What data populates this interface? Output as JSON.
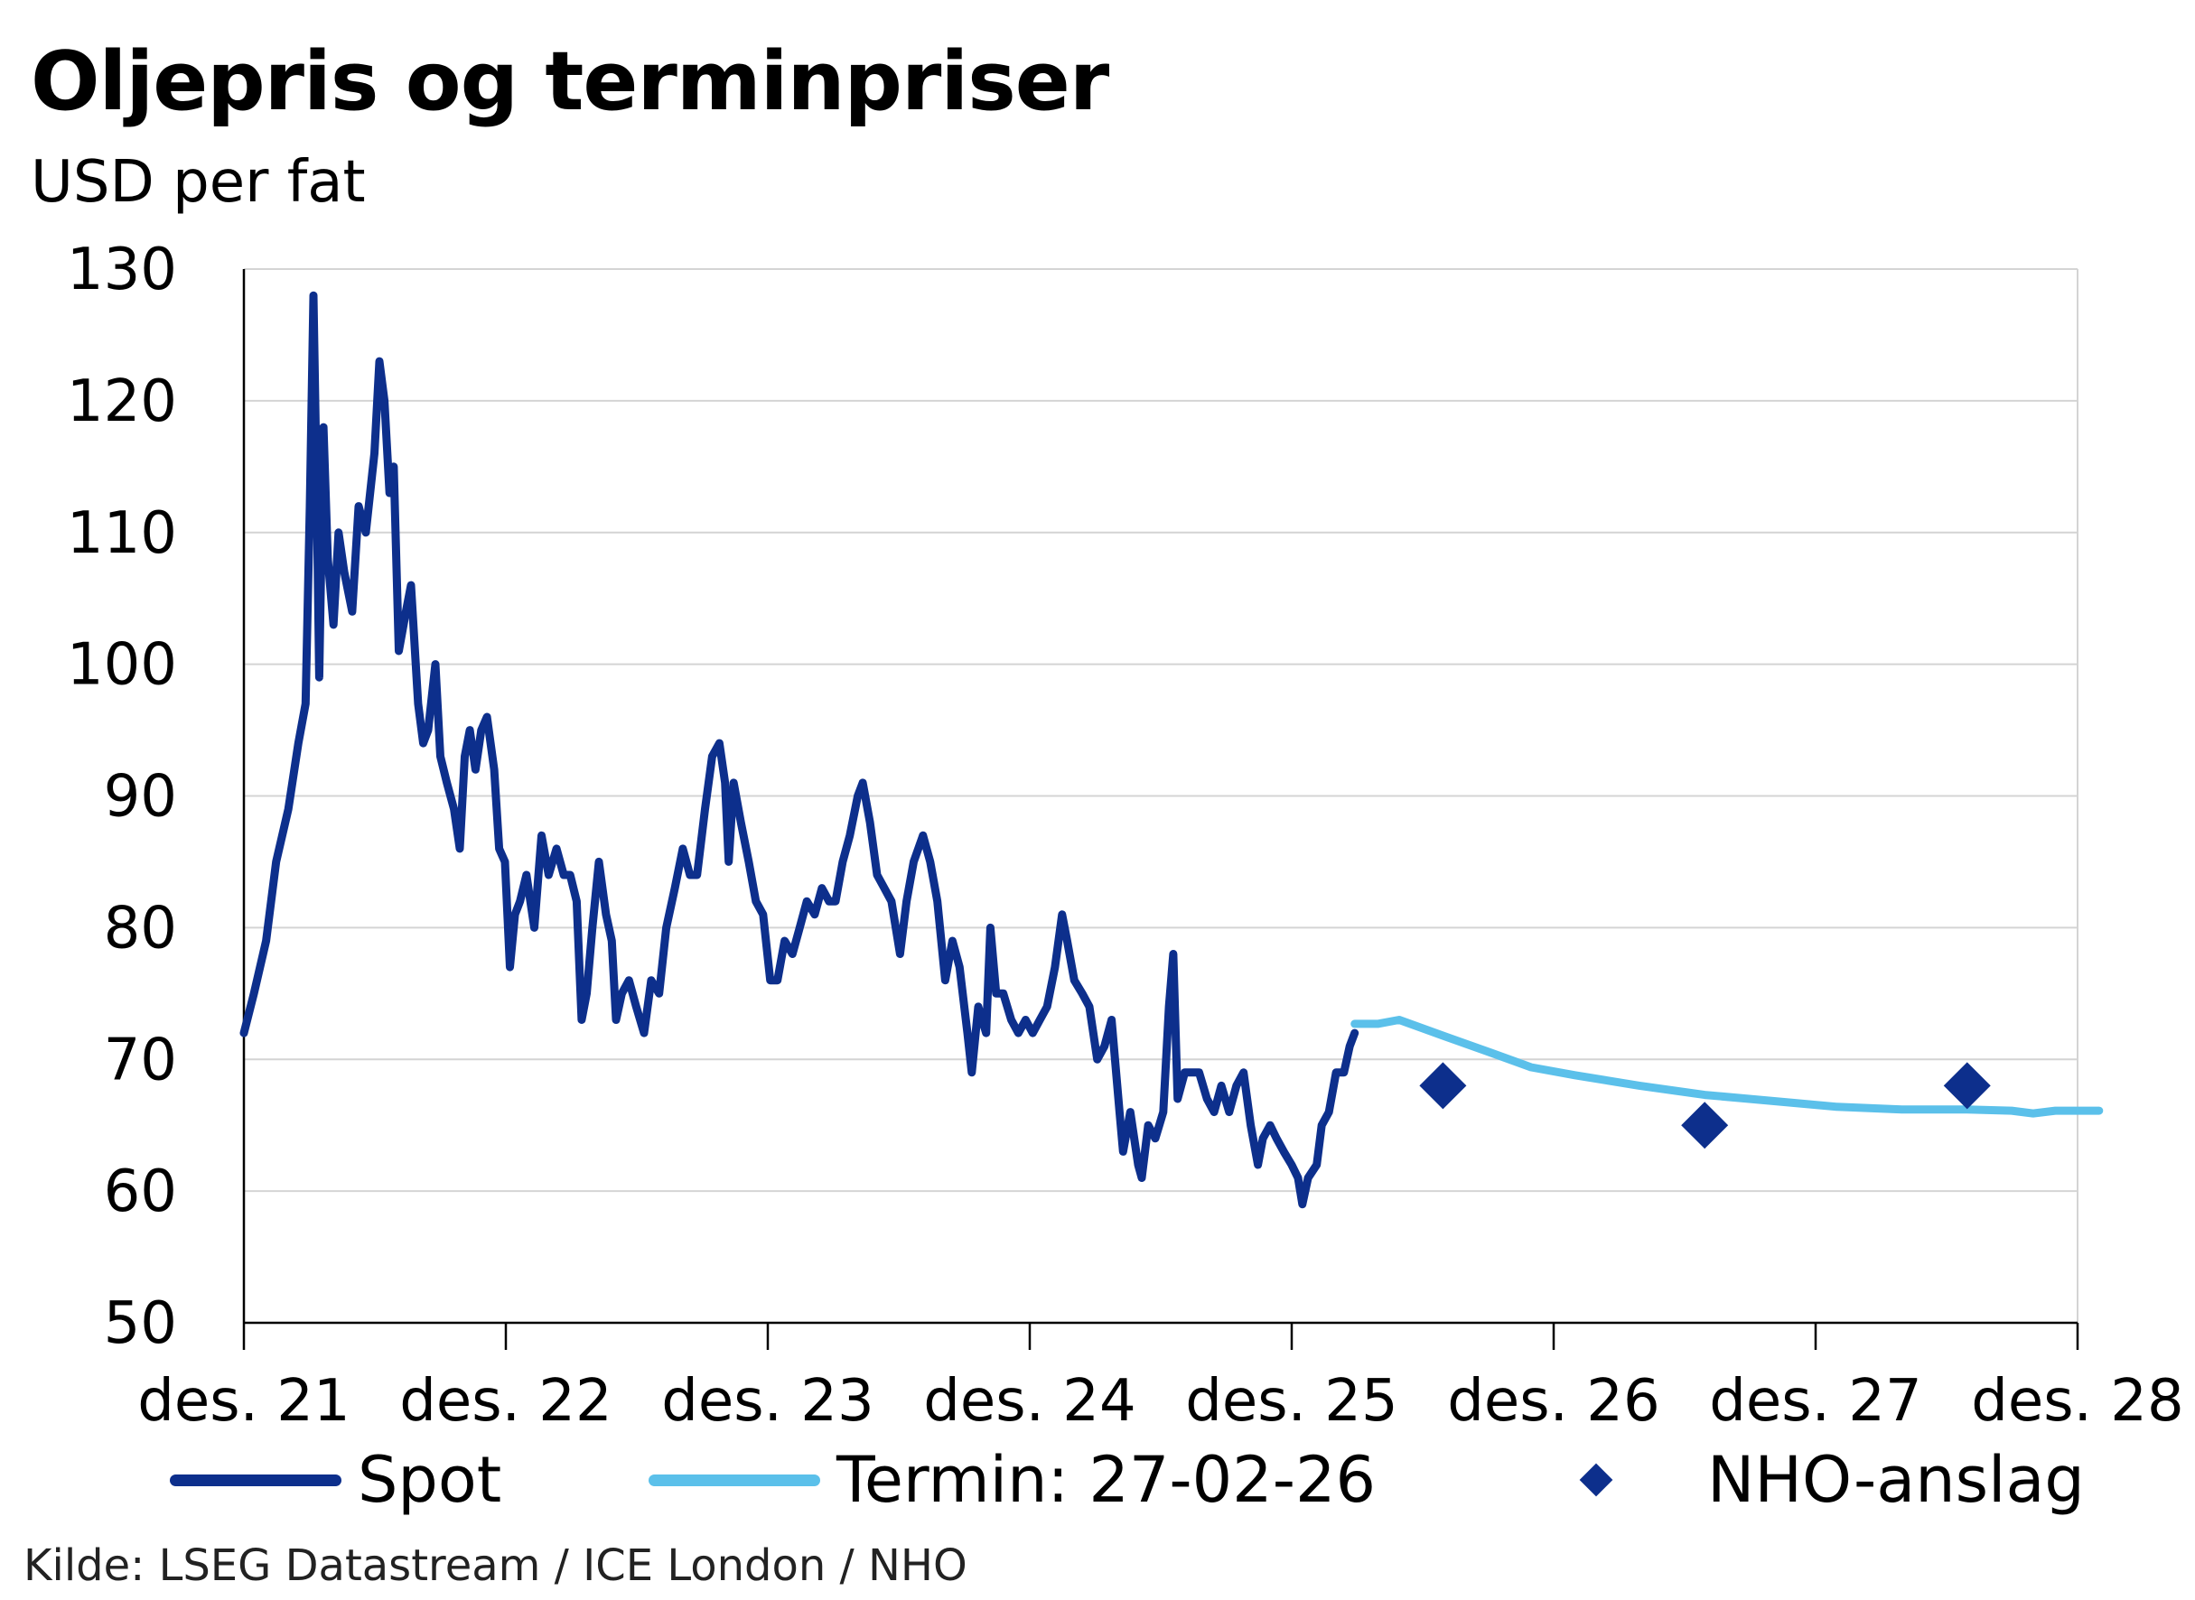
{
  "title": "Oljepris og terminpriser",
  "subtitle": "USD per fat",
  "source": "Kilde: LSEG Datastream / ICE London / NHO",
  "colors": {
    "spot": "#0d2f8c",
    "termin": "#5bc0ea",
    "nho": "#0d2f8c",
    "grid": "#d4d4d4",
    "axis": "#000000"
  },
  "chart_data": {
    "type": "line",
    "title": "Oljepris og terminpriser",
    "ylabel": "USD per fat",
    "xlabel": "",
    "ylim": [
      50,
      130
    ],
    "xlim": [
      "2021-12",
      "2028-12"
    ],
    "yticks": [
      50,
      60,
      70,
      80,
      90,
      100,
      110,
      120,
      130
    ],
    "xtick_labels": [
      "des. 21",
      "des. 22",
      "des. 23",
      "des. 24",
      "des. 25",
      "des. 26",
      "des. 27",
      "des. 28"
    ],
    "grid": true,
    "legend_position": "bottom",
    "series": [
      {
        "name": "Spot",
        "style": "line",
        "points": [
          [
            "2021-12-01",
            72
          ],
          [
            "2021-12-15",
            75
          ],
          [
            "2022-01-01",
            79
          ],
          [
            "2022-01-15",
            85
          ],
          [
            "2022-02-01",
            89
          ],
          [
            "2022-02-15",
            94
          ],
          [
            "2022-02-25",
            97
          ],
          [
            "2022-03-03",
            112
          ],
          [
            "2022-03-08",
            128
          ],
          [
            "2022-03-12",
            115
          ],
          [
            "2022-03-16",
            99
          ],
          [
            "2022-03-22",
            118
          ],
          [
            "2022-03-28",
            108
          ],
          [
            "2022-04-05",
            103
          ],
          [
            "2022-04-12",
            110
          ],
          [
            "2022-04-20",
            107
          ],
          [
            "2022-05-01",
            104
          ],
          [
            "2022-05-10",
            112
          ],
          [
            "2022-05-20",
            110
          ],
          [
            "2022-06-01",
            116
          ],
          [
            "2022-06-08",
            123
          ],
          [
            "2022-06-15",
            120
          ],
          [
            "2022-06-22",
            113
          ],
          [
            "2022-06-28",
            115
          ],
          [
            "2022-07-05",
            101
          ],
          [
            "2022-07-15",
            104
          ],
          [
            "2022-07-22",
            106
          ],
          [
            "2022-08-01",
            97
          ],
          [
            "2022-08-08",
            94
          ],
          [
            "2022-08-15",
            95
          ],
          [
            "2022-08-25",
            100
          ],
          [
            "2022-09-01",
            93
          ],
          [
            "2022-09-10",
            91
          ],
          [
            "2022-09-20",
            89
          ],
          [
            "2022-09-28",
            86
          ],
          [
            "2022-10-05",
            93
          ],
          [
            "2022-10-12",
            95
          ],
          [
            "2022-10-20",
            92
          ],
          [
            "2022-10-28",
            95
          ],
          [
            "2022-11-05",
            96
          ],
          [
            "2022-11-15",
            92
          ],
          [
            "2022-11-22",
            86
          ],
          [
            "2022-11-30",
            85
          ],
          [
            "2022-12-07",
            77
          ],
          [
            "2022-12-14",
            81
          ],
          [
            "2022-12-21",
            82
          ],
          [
            "2022-12-30",
            84
          ],
          [
            "2023-01-10",
            80
          ],
          [
            "2023-01-20",
            87
          ],
          [
            "2023-01-30",
            84
          ],
          [
            "2023-02-10",
            86
          ],
          [
            "2023-02-20",
            84
          ],
          [
            "2023-03-01",
            84
          ],
          [
            "2023-03-10",
            82
          ],
          [
            "2023-03-17",
            73
          ],
          [
            "2023-03-24",
            75
          ],
          [
            "2023-04-01",
            80
          ],
          [
            "2023-04-10",
            85
          ],
          [
            "2023-04-20",
            81
          ],
          [
            "2023-04-28",
            79
          ],
          [
            "2023-05-04",
            73
          ],
          [
            "2023-05-12",
            75
          ],
          [
            "2023-05-22",
            76
          ],
          [
            "2023-06-01",
            74
          ],
          [
            "2023-06-12",
            72
          ],
          [
            "2023-06-22",
            76
          ],
          [
            "2023-07-03",
            75
          ],
          [
            "2023-07-13",
            80
          ],
          [
            "2023-07-25",
            83
          ],
          [
            "2023-08-05",
            86
          ],
          [
            "2023-08-15",
            84
          ],
          [
            "2023-08-25",
            84
          ],
          [
            "2023-09-05",
            89
          ],
          [
            "2023-09-15",
            93
          ],
          [
            "2023-09-25",
            94
          ],
          [
            "2023-10-03",
            91
          ],
          [
            "2023-10-08",
            85
          ],
          [
            "2023-10-15",
            91
          ],
          [
            "2023-10-25",
            88
          ],
          [
            "2023-11-05",
            85
          ],
          [
            "2023-11-15",
            82
          ],
          [
            "2023-11-25",
            81
          ],
          [
            "2023-12-05",
            76
          ],
          [
            "2023-12-15",
            76
          ],
          [
            "2023-12-25",
            79
          ],
          [
            "2024-01-05",
            78
          ],
          [
            "2024-01-15",
            80
          ],
          [
            "2024-01-25",
            82
          ],
          [
            "2024-02-05",
            81
          ],
          [
            "2024-02-15",
            83
          ],
          [
            "2024-02-25",
            82
          ],
          [
            "2024-03-05",
            82
          ],
          [
            "2024-03-15",
            85
          ],
          [
            "2024-03-25",
            87
          ],
          [
            "2024-04-05",
            90
          ],
          [
            "2024-04-12",
            91
          ],
          [
            "2024-04-22",
            88
          ],
          [
            "2024-05-02",
            84
          ],
          [
            "2024-05-12",
            83
          ],
          [
            "2024-05-22",
            82
          ],
          [
            "2024-06-03",
            78
          ],
          [
            "2024-06-12",
            82
          ],
          [
            "2024-06-22",
            85
          ],
          [
            "2024-07-05",
            87
          ],
          [
            "2024-07-15",
            85
          ],
          [
            "2024-07-25",
            82
          ],
          [
            "2024-08-05",
            76
          ],
          [
            "2024-08-15",
            79
          ],
          [
            "2024-08-25",
            77
          ],
          [
            "2024-09-05",
            72
          ],
          [
            "2024-09-11",
            69
          ],
          [
            "2024-09-20",
            74
          ],
          [
            "2024-10-01",
            72
          ],
          [
            "2024-10-07",
            80
          ],
          [
            "2024-10-15",
            75
          ],
          [
            "2024-10-25",
            75
          ],
          [
            "2024-11-05",
            73
          ],
          [
            "2024-11-15",
            72
          ],
          [
            "2024-11-25",
            73
          ],
          [
            "2024-12-05",
            72
          ],
          [
            "2024-12-15",
            73
          ],
          [
            "2024-12-25",
            74
          ],
          [
            "2025-01-05",
            77
          ],
          [
            "2025-01-15",
            81
          ],
          [
            "2025-01-22",
            79
          ],
          [
            "2025-02-01",
            76
          ],
          [
            "2025-02-12",
            75
          ],
          [
            "2025-02-22",
            74
          ],
          [
            "2025-03-05",
            70
          ],
          [
            "2025-03-15",
            71
          ],
          [
            "2025-03-25",
            73
          ],
          [
            "2025-04-05",
            66
          ],
          [
            "2025-04-10",
            63
          ],
          [
            "2025-04-20",
            66
          ],
          [
            "2025-05-01",
            62
          ],
          [
            "2025-05-06",
            61
          ],
          [
            "2025-05-15",
            65
          ],
          [
            "2025-05-25",
            64
          ],
          [
            "2025-06-05",
            66
          ],
          [
            "2025-06-13",
            74
          ],
          [
            "2025-06-19",
            78
          ],
          [
            "2025-06-25",
            67
          ],
          [
            "2025-07-05",
            69
          ],
          [
            "2025-07-15",
            69
          ],
          [
            "2025-07-25",
            69
          ],
          [
            "2025-08-05",
            67
          ],
          [
            "2025-08-15",
            66
          ],
          [
            "2025-08-25",
            68
          ],
          [
            "2025-09-05",
            66
          ],
          [
            "2025-09-15",
            68
          ],
          [
            "2025-09-25",
            69
          ],
          [
            "2025-10-05",
            65
          ],
          [
            "2025-10-15",
            62
          ],
          [
            "2025-10-22",
            64
          ],
          [
            "2025-11-01",
            65
          ],
          [
            "2025-11-10",
            64
          ],
          [
            "2025-11-20",
            63
          ],
          [
            "2025-12-01",
            62
          ],
          [
            "2025-12-10",
            61
          ],
          [
            "2025-12-16",
            59
          ],
          [
            "2025-12-24",
            61
          ],
          [
            "2026-01-05",
            62
          ],
          [
            "2026-01-12",
            65
          ],
          [
            "2026-01-22",
            66
          ],
          [
            "2026-02-01",
            69
          ],
          [
            "2026-02-12",
            69
          ],
          [
            "2026-02-20",
            71
          ],
          [
            "2026-02-27",
            72
          ]
        ]
      },
      {
        "name": "Termin: 27-02-26",
        "style": "line",
        "points": [
          [
            "2026-02-27",
            72.7
          ],
          [
            "2026-03-31",
            72.7
          ],
          [
            "2026-04-30",
            73
          ],
          [
            "2026-06-30",
            71.8
          ],
          [
            "2026-08-31",
            70.6
          ],
          [
            "2026-10-31",
            69.4
          ],
          [
            "2026-12-31",
            68.8
          ],
          [
            "2027-03-31",
            68
          ],
          [
            "2027-06-30",
            67.3
          ],
          [
            "2027-08-31",
            67
          ],
          [
            "2027-10-31",
            66.7
          ],
          [
            "2027-12-31",
            66.4
          ],
          [
            "2028-03-31",
            66.2
          ],
          [
            "2028-06-30",
            66.2
          ],
          [
            "2028-08-31",
            66.1
          ],
          [
            "2028-09-30",
            65.9
          ],
          [
            "2028-10-31",
            66.1
          ],
          [
            "2028-12-31",
            66.1
          ]
        ]
      },
      {
        "name": "NHO-anslag",
        "style": "marker",
        "points": [
          [
            "2026-06-30",
            68
          ],
          [
            "2027-06-30",
            65
          ],
          [
            "2028-06-30",
            68
          ]
        ]
      }
    ]
  }
}
